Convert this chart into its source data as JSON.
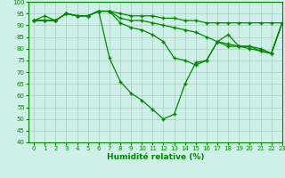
{
  "xlabel": "Humidité relative (%)",
  "background_color": "#cff0e8",
  "grid_color": "#aaccbb",
  "line_color": "#008800",
  "ylim": [
    40,
    100
  ],
  "xlim": [
    -0.5,
    23
  ],
  "ytick_min": 40,
  "ytick_max": 100,
  "ytick_step": 5,
  "xticks": [
    0,
    1,
    2,
    3,
    4,
    5,
    6,
    7,
    8,
    9,
    10,
    11,
    12,
    13,
    14,
    15,
    16,
    17,
    18,
    19,
    20,
    21,
    22,
    23
  ],
  "series": [
    [
      92,
      94,
      92,
      95,
      94,
      94,
      96,
      96,
      95,
      94,
      94,
      94,
      93,
      93,
      92,
      92,
      91,
      91,
      91,
      91,
      91,
      91,
      91,
      91
    ],
    [
      92,
      92,
      92,
      95,
      94,
      94,
      96,
      96,
      93,
      92,
      92,
      91,
      90,
      89,
      88,
      87,
      85,
      83,
      82,
      81,
      81,
      80,
      78,
      91
    ],
    [
      92,
      92,
      92,
      95,
      94,
      94,
      96,
      96,
      91,
      89,
      88,
      86,
      83,
      76,
      75,
      73,
      75,
      83,
      81,
      81,
      80,
      79,
      78,
      91
    ],
    [
      92,
      92,
      92,
      95,
      94,
      94,
      96,
      76,
      66,
      61,
      58,
      54,
      50,
      52,
      65,
      74,
      75,
      83,
      86,
      81,
      81,
      79,
      78,
      91
    ]
  ]
}
